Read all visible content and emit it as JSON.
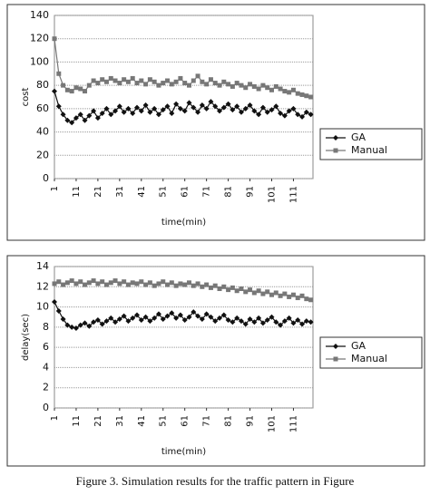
{
  "chart_data": [
    {
      "type": "line",
      "ylabel": "cost",
      "xlabel": "time(min)",
      "x": [
        1,
        3,
        5,
        7,
        9,
        11,
        13,
        15,
        17,
        19,
        21,
        23,
        25,
        27,
        29,
        31,
        33,
        35,
        37,
        39,
        41,
        43,
        45,
        47,
        49,
        51,
        53,
        55,
        57,
        59,
        61,
        63,
        65,
        67,
        69,
        71,
        73,
        75,
        77,
        79,
        81,
        83,
        85,
        87,
        89,
        91,
        93,
        95,
        97,
        99,
        101,
        103,
        105,
        107,
        109,
        111,
        113,
        115,
        117,
        119
      ],
      "xlim": [
        1,
        120
      ],
      "xticks": [
        1,
        11,
        21,
        31,
        41,
        51,
        61,
        71,
        81,
        91,
        101,
        111
      ],
      "ylim": [
        0,
        140
      ],
      "yticks": [
        0,
        20,
        40,
        60,
        80,
        100,
        120,
        140
      ],
      "grid": true,
      "legend": "right",
      "series": [
        {
          "name": "GA",
          "color": "#111111",
          "marker": "diamond",
          "values": [
            75,
            62,
            55,
            50,
            48,
            52,
            55,
            50,
            54,
            58,
            52,
            56,
            60,
            55,
            58,
            62,
            57,
            60,
            56,
            61,
            58,
            63,
            57,
            60,
            55,
            59,
            62,
            56,
            64,
            60,
            58,
            65,
            61,
            57,
            63,
            60,
            66,
            62,
            58,
            61,
            64,
            59,
            62,
            57,
            60,
            63,
            58,
            55,
            61,
            57,
            59,
            62,
            56,
            54,
            58,
            60,
            55,
            53,
            57,
            55
          ]
        },
        {
          "name": "Manual",
          "color": "#777777",
          "marker": "square",
          "values": [
            120,
            90,
            80,
            76,
            75,
            78,
            77,
            75,
            80,
            84,
            82,
            85,
            83,
            86,
            84,
            82,
            85,
            83,
            86,
            82,
            84,
            81,
            85,
            83,
            80,
            82,
            84,
            81,
            83,
            86,
            82,
            80,
            84,
            88,
            83,
            81,
            85,
            82,
            80,
            83,
            81,
            79,
            82,
            80,
            78,
            81,
            79,
            77,
            80,
            78,
            76,
            79,
            77,
            75,
            74,
            76,
            73,
            72,
            71,
            70
          ]
        }
      ]
    },
    {
      "type": "line",
      "ylabel": "delay(sec)",
      "xlabel": "time(min)",
      "x": [
        1,
        3,
        5,
        7,
        9,
        11,
        13,
        15,
        17,
        19,
        21,
        23,
        25,
        27,
        29,
        31,
        33,
        35,
        37,
        39,
        41,
        43,
        45,
        47,
        49,
        51,
        53,
        55,
        57,
        59,
        61,
        63,
        65,
        67,
        69,
        71,
        73,
        75,
        77,
        79,
        81,
        83,
        85,
        87,
        89,
        91,
        93,
        95,
        97,
        99,
        101,
        103,
        105,
        107,
        109,
        111,
        113,
        115,
        117,
        119
      ],
      "xlim": [
        1,
        120
      ],
      "xticks": [
        1,
        11,
        21,
        31,
        41,
        51,
        61,
        71,
        81,
        91,
        101,
        111
      ],
      "ylim": [
        0,
        14
      ],
      "yticks": [
        0,
        2,
        4,
        6,
        8,
        10,
        12,
        14
      ],
      "grid": true,
      "legend": "right",
      "series": [
        {
          "name": "GA",
          "color": "#111111",
          "marker": "diamond",
          "values": [
            10.5,
            9.6,
            8.8,
            8.2,
            8.0,
            7.9,
            8.2,
            8.4,
            8.1,
            8.5,
            8.7,
            8.3,
            8.6,
            8.9,
            8.5,
            8.8,
            9.1,
            8.6,
            8.9,
            9.2,
            8.7,
            9.0,
            8.6,
            8.9,
            9.3,
            8.8,
            9.1,
            9.4,
            8.9,
            9.2,
            8.7,
            9.0,
            9.5,
            9.1,
            8.8,
            9.3,
            9.0,
            8.6,
            8.9,
            9.2,
            8.7,
            8.5,
            8.9,
            8.6,
            8.3,
            8.8,
            8.5,
            8.9,
            8.4,
            8.7,
            9.0,
            8.5,
            8.2,
            8.6,
            8.9,
            8.4,
            8.7,
            8.3,
            8.6,
            8.5
          ]
        },
        {
          "name": "Manual",
          "color": "#777777",
          "marker": "square",
          "values": [
            12.3,
            12.5,
            12.2,
            12.4,
            12.6,
            12.3,
            12.5,
            12.2,
            12.4,
            12.6,
            12.3,
            12.5,
            12.2,
            12.4,
            12.6,
            12.3,
            12.5,
            12.2,
            12.4,
            12.3,
            12.5,
            12.2,
            12.4,
            12.1,
            12.3,
            12.5,
            12.2,
            12.4,
            12.1,
            12.3,
            12.2,
            12.4,
            12.1,
            12.3,
            12.0,
            12.2,
            11.9,
            12.1,
            11.8,
            12.0,
            11.7,
            11.9,
            11.6,
            11.8,
            11.5,
            11.7,
            11.4,
            11.6,
            11.3,
            11.5,
            11.2,
            11.4,
            11.1,
            11.3,
            11.0,
            11.2,
            10.9,
            11.1,
            10.8,
            10.7
          ]
        }
      ]
    }
  ],
  "caption": "Figure 3. Simulation results for the traffic pattern in Figure"
}
